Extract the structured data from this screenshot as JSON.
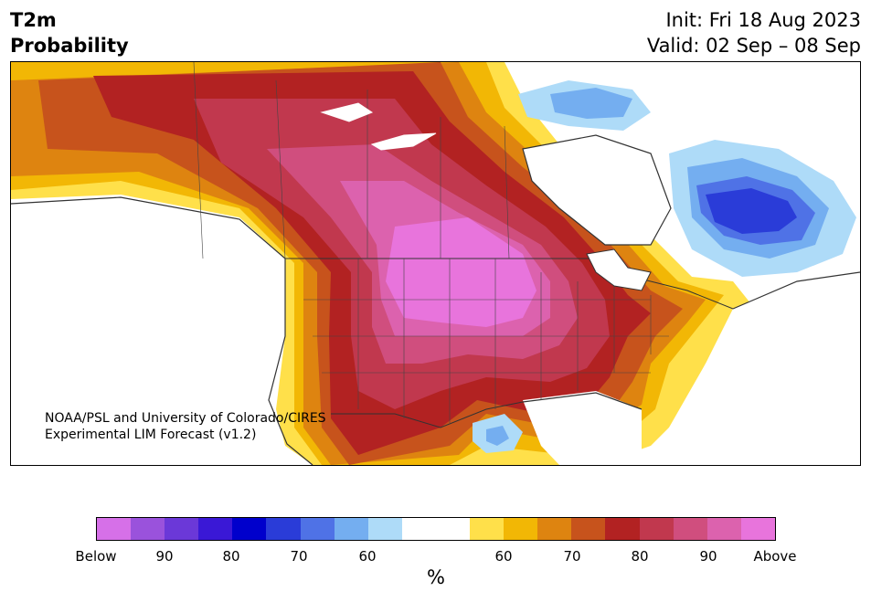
{
  "title": {
    "left_line1": "T2m",
    "left_line2": "Probability",
    "right_line1": "Init: Fri 18 Aug 2023",
    "right_line2": "Valid: 02 Sep – 08 Sep"
  },
  "credit": {
    "line1": "NOAA/PSL and University of Colorado/CIRES",
    "line2": "Experimental LIM Forecast (v1.2)"
  },
  "map": {
    "region": "North America",
    "field": "2-meter temperature probability",
    "warm_core": "central United States (Above)",
    "cool_core": "Quebec / Labrador (Below)"
  },
  "colorbar": {
    "unit": "%",
    "colors": [
      "#d670e8",
      "#9a52dc",
      "#6b38d8",
      "#3a18d6",
      "#0000cc",
      "#2a3cd8",
      "#4f72e6",
      "#74aef0",
      "#aedbf8",
      "#ffffff",
      "#ffffff",
      "#ffe04a",
      "#f2b705",
      "#de8410",
      "#c7531c",
      "#b22222",
      "#c1384e",
      "#d04e7e",
      "#dc62ae",
      "#e874dc"
    ],
    "tick_labels": [
      "Below",
      "90",
      "80",
      "70",
      "60",
      "60",
      "70",
      "80",
      "90",
      "Above"
    ]
  }
}
